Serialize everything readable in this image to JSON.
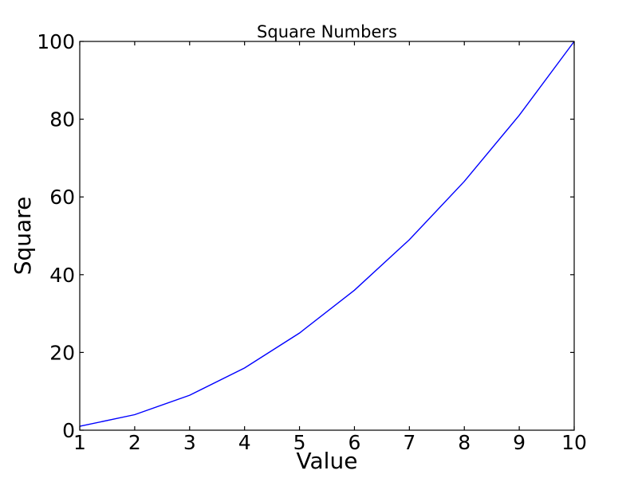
{
  "chart_data": {
    "type": "line",
    "title": "Square Numbers",
    "xlabel": "Value",
    "ylabel": "Square",
    "x": [
      1,
      2,
      3,
      4,
      5,
      6,
      7,
      8,
      9,
      10
    ],
    "y": [
      1,
      4,
      9,
      16,
      25,
      36,
      49,
      64,
      81,
      100
    ],
    "xlim": [
      1,
      10
    ],
    "ylim": [
      0,
      100
    ],
    "xticks": [
      1,
      2,
      3,
      4,
      5,
      6,
      7,
      8,
      9,
      10
    ],
    "yticks": [
      0,
      20,
      40,
      60,
      80,
      100
    ],
    "grid": false,
    "legend": null,
    "markers": false,
    "line_color": "#0000ff",
    "axes_color": "#000000",
    "background_color": "#ffffff"
  }
}
